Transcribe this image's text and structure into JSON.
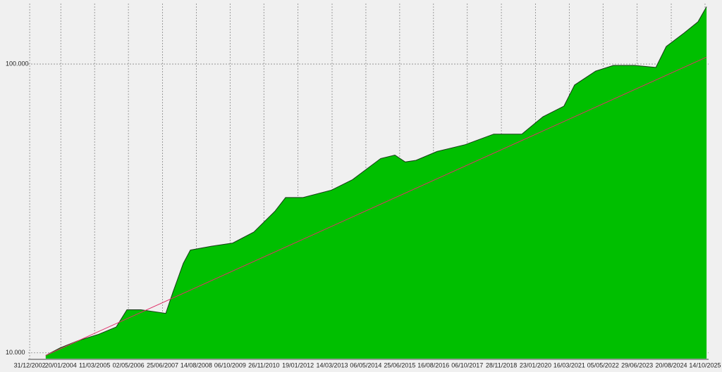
{
  "chart_data": {
    "type": "area",
    "x": [
      2003.54,
      2004.02,
      2004.61,
      2005.33,
      2005.92,
      2006.28,
      2006.75,
      2007.59,
      2007.83,
      2008.18,
      2008.42,
      2009.13,
      2009.85,
      2010.56,
      2011.27,
      2011.63,
      2012.22,
      2013.18,
      2013.89,
      2014.84,
      2015.32,
      2015.67,
      2016.03,
      2016.74,
      2017.69,
      2018.65,
      2019.6,
      2020.31,
      2021.02,
      2021.38,
      2022.09,
      2022.69,
      2023.4,
      2024.12,
      2024.47,
      2025.07,
      2025.54,
      2025.83
    ],
    "series": [
      {
        "color": "#00bf00",
        "values": [
          9.8,
          10.4,
          11.0,
          11.6,
          12.3,
          14.1,
          14.1,
          13.7,
          16.2,
          20.4,
          22.7,
          23.4,
          24.0,
          26.2,
          30.9,
          34.5,
          34.5,
          36.6,
          39.8,
          47.1,
          48.4,
          45.8,
          46.4,
          49.8,
          52.6,
          57.2,
          57.2,
          65.7,
          71.5,
          84.6,
          94.5,
          98.9,
          98.9,
          97.3,
          115,
          128,
          140,
          158
        ]
      }
    ],
    "trend": {
      "color": "#e0306a",
      "x": [
        2003.54,
        2025.83
      ],
      "values": [
        9.8,
        105.7
      ]
    },
    "log_scale": true,
    "grid": true,
    "xlim": [
      2002.95,
      2025.9
    ],
    "xticks": [
      {
        "value": 2003.0,
        "label": "31/12/2002"
      },
      {
        "value": 2004.05,
        "label": "20/01/2004"
      },
      {
        "value": 2005.19,
        "label": "11/03/2005"
      },
      {
        "value": 2006.33,
        "label": "02/05/2006"
      },
      {
        "value": 2007.48,
        "label": "25/06/2007"
      },
      {
        "value": 2008.62,
        "label": "14/08/2008"
      },
      {
        "value": 2009.76,
        "label": "06/10/2009"
      },
      {
        "value": 2010.9,
        "label": "26/11/2010"
      },
      {
        "value": 2012.05,
        "label": "19/01/2012"
      },
      {
        "value": 2013.2,
        "label": "14/03/2013"
      },
      {
        "value": 2014.34,
        "label": "06/05/2014"
      },
      {
        "value": 2015.48,
        "label": "25/06/2015"
      },
      {
        "value": 2016.62,
        "label": "16/08/2016"
      },
      {
        "value": 2017.76,
        "label": "06/10/2017"
      },
      {
        "value": 2018.91,
        "label": "28/11/2018"
      },
      {
        "value": 2020.06,
        "label": "23/01/2020"
      },
      {
        "value": 2021.2,
        "label": "16/03/2021"
      },
      {
        "value": 2022.34,
        "label": "05/05/2022"
      },
      {
        "value": 2023.49,
        "label": "29/06/2023"
      },
      {
        "value": 2024.64,
        "label": "20/08/2024"
      },
      {
        "value": 2025.78,
        "label": "14/10/2025"
      }
    ],
    "ylim": [
      9.55,
      162
    ],
    "yticks": [
      {
        "value": 10,
        "label": "10.000"
      },
      {
        "value": 100,
        "label": "100.000"
      }
    ]
  }
}
